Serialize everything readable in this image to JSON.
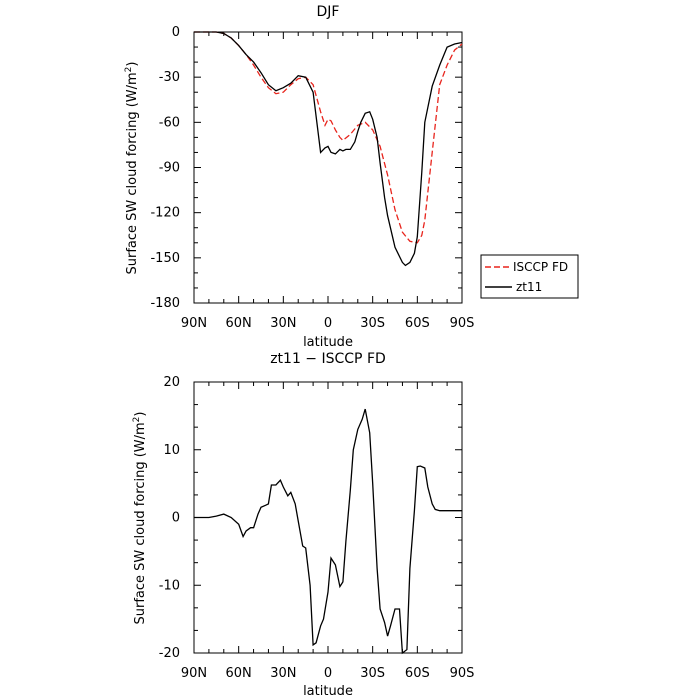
{
  "chart_data": [
    {
      "type": "line",
      "title": "DJF",
      "xlabel": "latitude",
      "ylabel": "Surface SW cloud forcing (W/m",
      "ylabel_sup": "2",
      "ylabel_close": ")",
      "xlim": [
        -90,
        90
      ],
      "ylim": [
        -180,
        0
      ],
      "xticks": [
        -90,
        -60,
        -30,
        0,
        30,
        60,
        90
      ],
      "xtick_labels": [
        "90N",
        "60N",
        "30N",
        "0",
        "30S",
        "60S",
        "90S"
      ],
      "yticks": [
        0,
        -30,
        -60,
        -90,
        -120,
        -150,
        -180
      ],
      "ytick_labels": [
        "0",
        "-30",
        "-60",
        "-90",
        "-120",
        "-150",
        "-180"
      ],
      "legend_position": "right",
      "series": [
        {
          "name": "ISCCP FD",
          "color": "#e8241c",
          "dashed": true,
          "x": [
            -90,
            -85,
            -80,
            -75,
            -70,
            -65,
            -60,
            -55,
            -50,
            -45,
            -40,
            -35,
            -30,
            -25,
            -20,
            -15,
            -10,
            -5,
            -2,
            0,
            2,
            5,
            8,
            10,
            15,
            20,
            25,
            30,
            35,
            40,
            45,
            50,
            55,
            60,
            63,
            65,
            70,
            75,
            80,
            85,
            90
          ],
          "y": [
            0,
            0,
            0,
            0,
            -1,
            -4,
            -9,
            -15,
            -22,
            -30,
            -37,
            -41,
            -40,
            -35,
            -31,
            -30,
            -35,
            -53,
            -62,
            -58,
            -59,
            -65,
            -70,
            -72,
            -68,
            -62,
            -60,
            -65,
            -76,
            -95,
            -118,
            -133,
            -139,
            -140,
            -135,
            -125,
            -80,
            -35,
            -22,
            -12,
            -8
          ]
        },
        {
          "name": "zt11",
          "color": "#000000",
          "dashed": false,
          "x": [
            -90,
            -85,
            -80,
            -75,
            -70,
            -65,
            -60,
            -55,
            -50,
            -45,
            -40,
            -35,
            -30,
            -25,
            -20,
            -15,
            -10,
            -5,
            -2,
            0,
            2,
            5,
            8,
            10,
            12,
            15,
            18,
            20,
            22,
            25,
            28,
            30,
            33,
            35,
            38,
            40,
            45,
            50,
            52,
            55,
            58,
            60,
            63,
            65,
            70,
            75,
            80,
            85,
            90
          ],
          "y": [
            0,
            0,
            0,
            0,
            -1,
            -4,
            -9,
            -15,
            -20,
            -27,
            -35,
            -39,
            -37,
            -34,
            -29,
            -30,
            -40,
            -80,
            -77,
            -76,
            -80,
            -81,
            -78,
            -79,
            -78,
            -78,
            -73,
            -66,
            -60,
            -54,
            -53,
            -58,
            -70,
            -87,
            -110,
            -122,
            -143,
            -153,
            -155,
            -153,
            -147,
            -136,
            -93,
            -60,
            -36,
            -22,
            -10,
            -8,
            -7
          ]
        }
      ]
    },
    {
      "type": "line",
      "title": "zt11 − ISCCP FD",
      "xlabel": "latitude",
      "ylabel": "Surface SW cloud forcing (W/m",
      "ylabel_sup": "2",
      "ylabel_close": ")",
      "xlim": [
        -90,
        90
      ],
      "ylim": [
        -20,
        20
      ],
      "xticks": [
        -90,
        -60,
        -30,
        0,
        30,
        60,
        90
      ],
      "xtick_labels": [
        "90N",
        "60N",
        "30N",
        "0",
        "30S",
        "60S",
        "90S"
      ],
      "yticks": [
        20,
        10,
        0,
        -10,
        -20
      ],
      "ytick_labels": [
        "20",
        "10",
        "0",
        "-10",
        "-20"
      ],
      "series": [
        {
          "name": "zt11 − ISCCP FD",
          "color": "#000000",
          "dashed": false,
          "x": [
            -90,
            -85,
            -80,
            -75,
            -70,
            -65,
            -60,
            -57,
            -55,
            -52,
            -50,
            -47,
            -45,
            -42,
            -40,
            -38,
            -35,
            -32,
            -30,
            -27,
            -25,
            -22,
            -20,
            -17,
            -15,
            -12,
            -10,
            -8,
            -5,
            -3,
            0,
            2,
            5,
            8,
            10,
            12,
            15,
            17,
            20,
            23,
            25,
            28,
            30,
            33,
            35,
            38,
            40,
            42,
            45,
            48,
            50,
            53,
            55,
            58,
            60,
            62,
            65,
            67,
            70,
            72,
            75,
            78,
            80,
            82,
            85,
            87,
            90
          ],
          "y": [
            0,
            0,
            0,
            0.2,
            0.5,
            0,
            -1,
            -2.8,
            -2,
            -1.5,
            -1.5,
            0.5,
            1.5,
            1.8,
            2,
            4.8,
            4.8,
            5.5,
            4.5,
            3.2,
            3.7,
            2,
            -0.5,
            -4.2,
            -4.5,
            -10,
            -18.8,
            -18.5,
            -16,
            -15,
            -11,
            -6,
            -7,
            -10.2,
            -9.5,
            -3.5,
            4,
            10,
            13,
            14.5,
            16,
            12.5,
            5,
            -7.5,
            -13.5,
            -15.5,
            -17.5,
            -16,
            -13.5,
            -13.5,
            -20,
            -19.5,
            -7.5,
            1,
            7.5,
            7.6,
            7.3,
            4.5,
            2,
            1.2,
            1,
            1,
            1,
            1,
            1,
            1,
            1
          ]
        }
      ]
    }
  ]
}
